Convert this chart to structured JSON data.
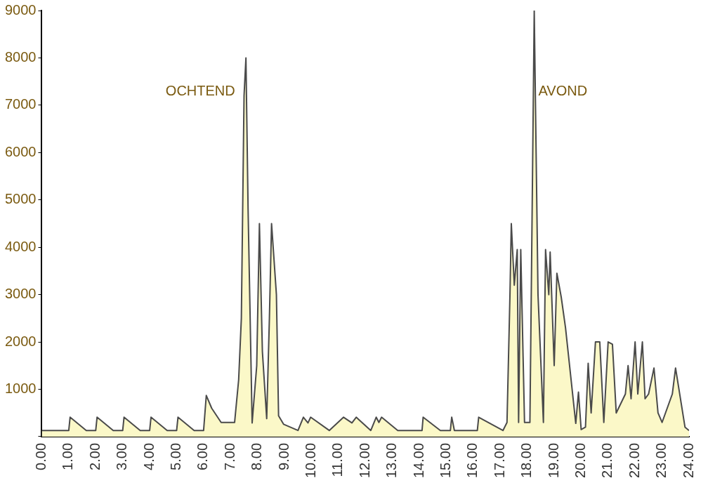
{
  "chart_data": {
    "type": "area",
    "x": [
      0,
      1.0,
      1.05,
      1.65,
      2.0,
      2.05,
      2.65,
      3.0,
      3.05,
      3.65,
      4.0,
      4.05,
      4.65,
      5.0,
      5.05,
      5.65,
      6.0,
      6.1,
      6.3,
      6.65,
      7.15,
      7.3,
      7.4,
      7.5,
      7.57,
      7.65,
      7.8,
      7.97,
      8.07,
      8.18,
      8.34,
      8.44,
      8.52,
      8.7,
      8.78,
      8.97,
      9.5,
      9.7,
      9.87,
      9.97,
      10.66,
      11.19,
      11.5,
      11.66,
      12.2,
      12.4,
      12.5,
      12.6,
      13.2,
      14.1,
      14.14,
      14.78,
      15.15,
      15.2,
      15.3,
      16.15,
      16.2,
      17.1,
      17.25,
      17.36,
      17.41,
      17.52,
      17.63,
      17.68,
      17.76,
      17.9,
      18.1,
      18.15,
      18.26,
      18.4,
      18.6,
      18.68,
      18.8,
      18.85,
      19.0,
      19.1,
      19.26,
      19.42,
      19.8,
      19.9,
      20.0,
      20.16,
      20.26,
      20.37,
      20.53,
      20.69,
      20.84,
      21.0,
      21.16,
      21.3,
      21.64,
      21.74,
      21.85,
      22.0,
      22.1,
      22.27,
      22.37,
      22.5,
      22.7,
      22.85,
      23.0,
      23.38,
      23.5,
      23.85,
      24
    ],
    "values": [
      130,
      130,
      410,
      130,
      130,
      410,
      130,
      130,
      410,
      130,
      130,
      410,
      130,
      130,
      410,
      130,
      130,
      870,
      600,
      300,
      300,
      1200,
      2500,
      7200,
      8000,
      4800,
      290,
      1500,
      4500,
      1800,
      380,
      2500,
      4500,
      3000,
      440,
      260,
      130,
      410,
      290,
      410,
      130,
      410,
      290,
      410,
      130,
      410,
      300,
      410,
      130,
      130,
      410,
      130,
      130,
      410,
      130,
      130,
      410,
      130,
      300,
      3000,
      4500,
      3200,
      3950,
      300,
      3950,
      300,
      300,
      3000,
      9000,
      3000,
      300,
      3950,
      3000,
      3900,
      1500,
      3450,
      2950,
      2300,
      280,
      940,
      150,
      200,
      1550,
      500,
      2000,
      2000,
      300,
      2000,
      1950,
      500,
      900,
      1500,
      800,
      2000,
      900,
      2000,
      800,
      900,
      1450,
      500,
      300,
      900,
      1450,
      200,
      130
    ],
    "color": "#4a4a4a",
    "marker": "none",
    "xlim": [
      0,
      24
    ],
    "xticks": [
      {
        "value": 0,
        "label": "0.00"
      },
      {
        "value": 1,
        "label": "1.00"
      },
      {
        "value": 2,
        "label": "2.00"
      },
      {
        "value": 3,
        "label": "3.00"
      },
      {
        "value": 4,
        "label": "4.00"
      },
      {
        "value": 5,
        "label": "5.00"
      },
      {
        "value": 6,
        "label": "6.00"
      },
      {
        "value": 7,
        "label": "7.00"
      },
      {
        "value": 8,
        "label": "8.00"
      },
      {
        "value": 9,
        "label": "9.00"
      },
      {
        "value": 10,
        "label": "10.00"
      },
      {
        "value": 11,
        "label": "11.00"
      },
      {
        "value": 12,
        "label": "12.00"
      },
      {
        "value": 13,
        "label": "13.00"
      },
      {
        "value": 14,
        "label": "14.00"
      },
      {
        "value": 15,
        "label": "15.00"
      },
      {
        "value": 16,
        "label": "16.00"
      },
      {
        "value": 17,
        "label": "17.00"
      },
      {
        "value": 18,
        "label": "18.00"
      },
      {
        "value": 19,
        "label": "19.00"
      },
      {
        "value": 20,
        "label": "20.00"
      },
      {
        "value": 21,
        "label": "21.00"
      },
      {
        "value": 22,
        "label": "22.00"
      },
      {
        "value": 23,
        "label": "23.00"
      },
      {
        "value": 24,
        "label": "24.00"
      }
    ],
    "ylim": [
      0,
      9000
    ],
    "yticks": [
      {
        "value": 0,
        "label": null
      },
      1000,
      2000,
      3000,
      4000,
      5000,
      6000,
      7000,
      8000,
      9000
    ],
    "annotations": [
      "OCHTEND",
      "AVOND"
    ],
    "grid": false,
    "legend": false
  }
}
